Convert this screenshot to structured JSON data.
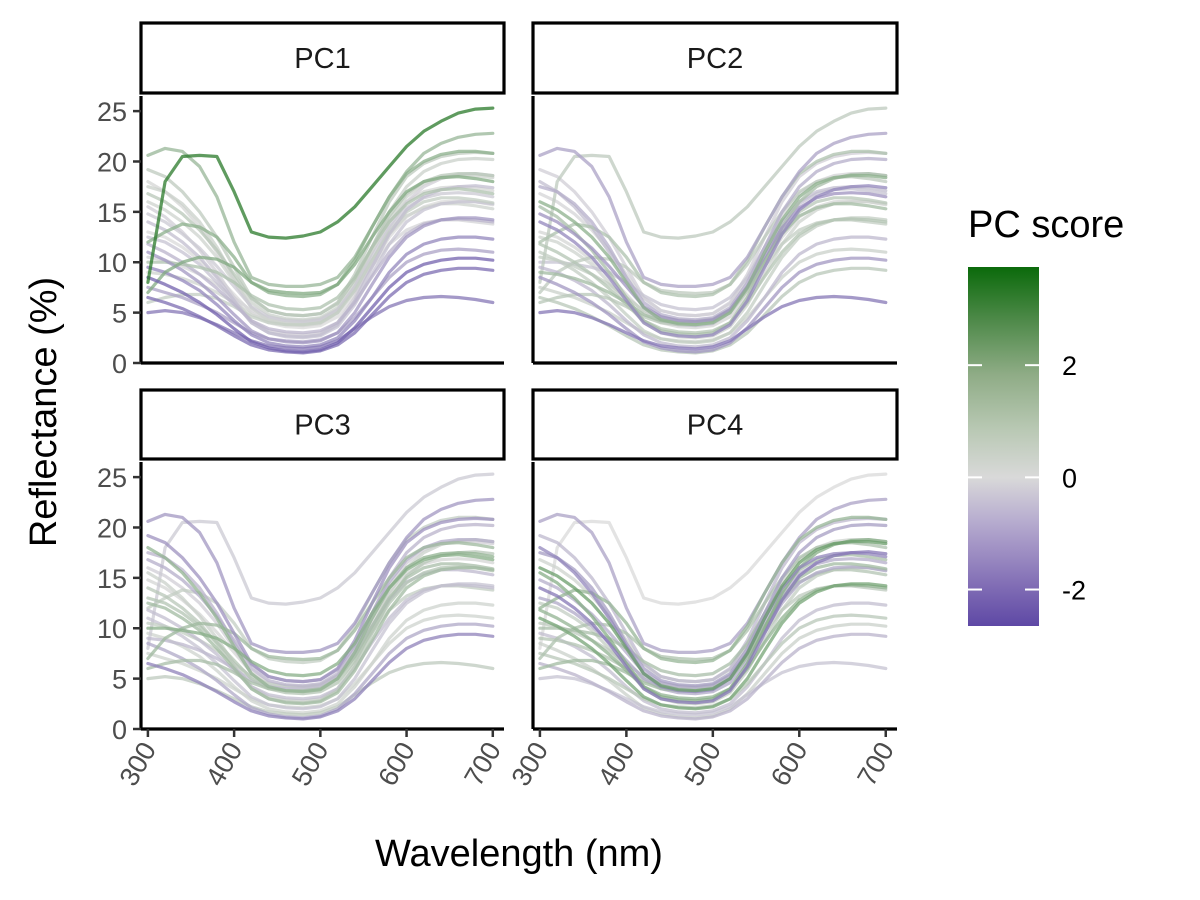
{
  "chart_data": {
    "type": "line",
    "layout": "faceted 2x2 grid",
    "xlabel": "Wavelength (nm)",
    "ylabel": "Reflectance (%)",
    "xlim": [
      292,
      713
    ],
    "ylim": [
      0,
      26.5
    ],
    "x_ticks": [
      300,
      400,
      500,
      600,
      700
    ],
    "y_ticks": [
      0,
      5,
      10,
      15,
      20,
      25
    ],
    "x_tick_label_rotation_deg": -60,
    "grid": false,
    "facets": [
      "PC1",
      "PC2",
      "PC3",
      "PC4"
    ],
    "legend": {
      "title": "PC score",
      "position": "right",
      "type": "colorbar",
      "range": [
        -2.65,
        3.75
      ],
      "breaks": [
        -2,
        0,
        2
      ],
      "break_labels": [
        "-2",
        "0",
        "2"
      ],
      "colors": {
        "low": "#5e48a5",
        "mid": "#d9d9d9",
        "high": "#0b6a0b"
      }
    },
    "wavelengths": [
      300,
      320,
      340,
      360,
      380,
      400,
      420,
      440,
      460,
      480,
      500,
      520,
      540,
      560,
      580,
      600,
      620,
      640,
      660,
      680,
      700
    ],
    "series": [
      {
        "values": [
          8.0,
          18.0,
          20.5,
          20.6,
          20.5,
          17.0,
          13.0,
          12.5,
          12.4,
          12.6,
          13.0,
          14.0,
          15.5,
          17.5,
          19.5,
          21.5,
          23.0,
          24.0,
          24.8,
          25.2,
          25.3
        ],
        "scores": [
          3.2,
          0.5,
          -0.3,
          0.0
        ]
      },
      {
        "values": [
          20.6,
          21.3,
          21.0,
          19.5,
          16.5,
          12.0,
          8.5,
          7.8,
          7.6,
          7.6,
          7.8,
          8.5,
          10.5,
          13.5,
          16.5,
          19.0,
          20.8,
          21.8,
          22.4,
          22.7,
          22.8
        ],
        "scores": [
          1.2,
          -1.0,
          -1.2,
          -1.0
        ]
      },
      {
        "values": [
          7.0,
          9.0,
          10.0,
          10.5,
          10.3,
          9.5,
          8.0,
          7.2,
          7.0,
          6.9,
          7.0,
          7.8,
          9.8,
          12.5,
          15.0,
          17.0,
          18.0,
          18.4,
          18.5,
          18.3,
          18.0
        ],
        "scores": [
          1.6,
          0.5,
          1.1,
          0.8
        ]
      },
      {
        "values": [
          12.0,
          13.0,
          13.8,
          13.5,
          12.5,
          10.5,
          8.0,
          7.0,
          6.7,
          6.6,
          6.8,
          7.8,
          10.2,
          13.5,
          16.5,
          18.8,
          20.0,
          20.7,
          21.0,
          21.0,
          20.8
        ],
        "scores": [
          1.4,
          0.8,
          0.4,
          1.2
        ]
      },
      {
        "values": [
          17.5,
          17.0,
          15.8,
          14.0,
          11.5,
          8.5,
          6.0,
          4.8,
          4.4,
          4.3,
          4.5,
          5.5,
          8.0,
          11.5,
          15.0,
          17.5,
          19.0,
          19.8,
          20.2,
          20.3,
          20.2
        ],
        "scores": [
          0.3,
          -0.8,
          -0.7,
          -1.1
        ]
      },
      {
        "values": [
          19.2,
          18.5,
          17.0,
          15.0,
          12.5,
          9.5,
          6.5,
          5.2,
          4.8,
          4.7,
          4.9,
          6.0,
          8.8,
          12.5,
          16.0,
          18.5,
          19.8,
          20.5,
          20.8,
          20.9,
          20.8
        ],
        "scores": [
          0.5,
          -0.2,
          -1.3,
          -0.6
        ]
      },
      {
        "values": [
          15.5,
          14.5,
          13.0,
          11.2,
          9.0,
          6.5,
          4.2,
          3.2,
          2.9,
          2.8,
          3.0,
          4.0,
          6.5,
          10.0,
          13.5,
          16.0,
          17.5,
          18.3,
          18.7,
          18.8,
          18.6
        ],
        "scores": [
          -0.2,
          0.9,
          0.3,
          1.5
        ]
      },
      {
        "values": [
          14.0,
          13.2,
          12.0,
          10.5,
          8.5,
          6.2,
          4.0,
          3.0,
          2.7,
          2.6,
          2.8,
          3.8,
          6.2,
          9.5,
          12.8,
          15.2,
          16.5,
          17.2,
          17.5,
          17.6,
          17.4
        ],
        "scores": [
          -0.5,
          -1.5,
          0.6,
          -1.8
        ]
      },
      {
        "values": [
          12.5,
          12.0,
          11.0,
          9.8,
          8.0,
          6.0,
          4.0,
          3.0,
          2.6,
          2.5,
          2.7,
          3.6,
          5.8,
          8.8,
          11.8,
          14.0,
          15.2,
          15.8,
          16.0,
          16.0,
          15.8
        ],
        "scores": [
          -0.4,
          0.2,
          1.0,
          0.4
        ]
      },
      {
        "values": [
          11.0,
          10.2,
          9.2,
          8.0,
          6.5,
          4.8,
          3.2,
          2.4,
          2.1,
          2.0,
          2.2,
          3.0,
          5.0,
          7.8,
          10.5,
          12.5,
          13.6,
          14.2,
          14.4,
          14.4,
          14.2
        ],
        "scores": [
          -1.2,
          0.4,
          -0.4,
          1.8
        ]
      },
      {
        "values": [
          9.5,
          9.0,
          8.2,
          7.2,
          5.8,
          4.2,
          2.8,
          2.0,
          1.7,
          1.6,
          1.8,
          2.5,
          4.2,
          6.5,
          9.0,
          10.8,
          11.8,
          12.3,
          12.5,
          12.5,
          12.3
        ],
        "scores": [
          -1.5,
          -0.6,
          0.2,
          -0.5
        ]
      },
      {
        "values": [
          8.5,
          7.8,
          7.0,
          6.0,
          4.8,
          3.4,
          2.1,
          1.5,
          1.2,
          1.1,
          1.3,
          2.0,
          3.5,
          5.5,
          7.5,
          9.0,
          9.8,
          10.2,
          10.4,
          10.4,
          10.2
        ],
        "scores": [
          -2.2,
          -1.2,
          -0.9,
          0.3
        ]
      },
      {
        "values": [
          6.5,
          6.0,
          5.4,
          4.6,
          3.7,
          2.7,
          1.8,
          1.3,
          1.1,
          1.0,
          1.2,
          1.8,
          3.0,
          4.8,
          6.6,
          8.0,
          8.8,
          9.2,
          9.4,
          9.4,
          9.2
        ],
        "scores": [
          -2.0,
          0.6,
          -1.6,
          -0.7
        ]
      },
      {
        "values": [
          5.0,
          5.2,
          5.0,
          4.5,
          3.8,
          3.0,
          2.2,
          1.7,
          1.5,
          1.4,
          1.6,
          2.2,
          3.4,
          4.6,
          5.6,
          6.2,
          6.5,
          6.6,
          6.5,
          6.3,
          6.0
        ],
        "scores": [
          -1.8,
          -1.8,
          0.5,
          -0.4
        ]
      },
      {
        "values": [
          10.0,
          10.0,
          9.8,
          9.5,
          9.0,
          8.0,
          6.7,
          5.8,
          5.4,
          5.3,
          5.5,
          6.5,
          8.5,
          11.5,
          14.0,
          15.8,
          16.8,
          17.2,
          17.3,
          17.1,
          16.8
        ],
        "scores": [
          0.8,
          -0.4,
          1.5,
          0.9
        ]
      },
      {
        "values": [
          16.0,
          15.2,
          14.0,
          12.5,
          10.5,
          8.0,
          5.5,
          4.3,
          3.9,
          3.8,
          4.0,
          5.0,
          7.5,
          11.0,
          14.2,
          16.5,
          17.8,
          18.4,
          18.6,
          18.6,
          18.4
        ],
        "scores": [
          0.2,
          1.4,
          -0.2,
          2.0
        ]
      },
      {
        "values": [
          13.0,
          12.5,
          11.5,
          10.2,
          8.6,
          6.8,
          5.0,
          4.0,
          3.6,
          3.5,
          3.7,
          4.6,
          6.8,
          9.8,
          12.5,
          14.5,
          15.5,
          16.0,
          16.1,
          16.0,
          15.7
        ],
        "scores": [
          0.0,
          0.1,
          0.7,
          -0.9
        ]
      },
      {
        "values": [
          7.5,
          7.0,
          6.5,
          5.8,
          5.0,
          4.0,
          3.0,
          2.4,
          2.2,
          2.1,
          2.3,
          3.0,
          4.5,
          6.5,
          8.5,
          10.0,
          10.8,
          11.2,
          11.3,
          11.2,
          11.0
        ],
        "scores": [
          -1.0,
          0.3,
          0.2,
          0.6
        ]
      },
      {
        "values": [
          18.0,
          17.0,
          15.5,
          13.5,
          11.0,
          8.2,
          5.5,
          4.2,
          3.8,
          3.7,
          3.9,
          5.0,
          7.6,
          11.0,
          14.0,
          16.0,
          17.0,
          17.4,
          17.5,
          17.4,
          17.1
        ],
        "scores": [
          0.1,
          -0.5,
          1.3,
          -1.5
        ]
      },
      {
        "values": [
          6.0,
          6.5,
          6.8,
          6.8,
          6.4,
          5.6,
          4.6,
          4.0,
          3.8,
          3.8,
          4.0,
          5.0,
          7.2,
          10.2,
          13.0,
          15.0,
          16.0,
          16.4,
          16.4,
          16.2,
          15.9
        ],
        "scores": [
          0.4,
          0.6,
          0.9,
          1.0
        ]
      },
      {
        "values": [
          9.0,
          8.8,
          8.4,
          7.8,
          7.0,
          6.0,
          4.8,
          4.2,
          4.0,
          4.0,
          4.2,
          5.2,
          7.4,
          10.2,
          12.8,
          14.6,
          15.4,
          15.8,
          15.8,
          15.6,
          15.3
        ],
        "scores": [
          0.2,
          1.0,
          -0.6,
          0.7
        ]
      },
      {
        "values": [
          14.8,
          14.0,
          12.8,
          11.4,
          9.6,
          7.6,
          5.6,
          4.6,
          4.2,
          4.1,
          4.3,
          5.3,
          7.6,
          10.6,
          13.4,
          15.4,
          16.4,
          16.8,
          16.9,
          16.8,
          16.5
        ],
        "scores": [
          -0.3,
          -1.3,
          0.1,
          -0.8
        ]
      },
      {
        "values": [
          11.8,
          11.0,
          10.0,
          8.8,
          7.4,
          5.8,
          4.2,
          3.4,
          3.1,
          3.0,
          3.2,
          4.0,
          6.0,
          8.6,
          11.0,
          12.8,
          13.8,
          14.2,
          14.3,
          14.2,
          14.0
        ],
        "scores": [
          -0.7,
          0.7,
          -0.5,
          1.3
        ]
      },
      {
        "values": [
          16.8,
          16.0,
          14.8,
          13.2,
          11.2,
          8.8,
          6.4,
          5.2,
          4.8,
          4.7,
          4.9,
          5.9,
          8.3,
          11.5,
          14.6,
          16.8,
          18.0,
          18.6,
          18.8,
          18.8,
          18.6
        ],
        "scores": [
          0.6,
          -0.1,
          -0.8,
          0.2
        ]
      },
      {
        "values": [
          10.5,
          10.2,
          9.6,
          8.8,
          7.8,
          6.5,
          5.2,
          4.5,
          4.3,
          4.2,
          4.4,
          5.3,
          7.2,
          9.6,
          11.8,
          13.2,
          13.9,
          14.2,
          14.2,
          14.0,
          13.8
        ],
        "scores": [
          -0.1,
          0.4,
          0.4,
          0.5
        ]
      }
    ]
  },
  "panels": [
    {
      "label": "PC1"
    },
    {
      "label": "PC2"
    },
    {
      "label": "PC3"
    },
    {
      "label": "PC4"
    }
  ]
}
